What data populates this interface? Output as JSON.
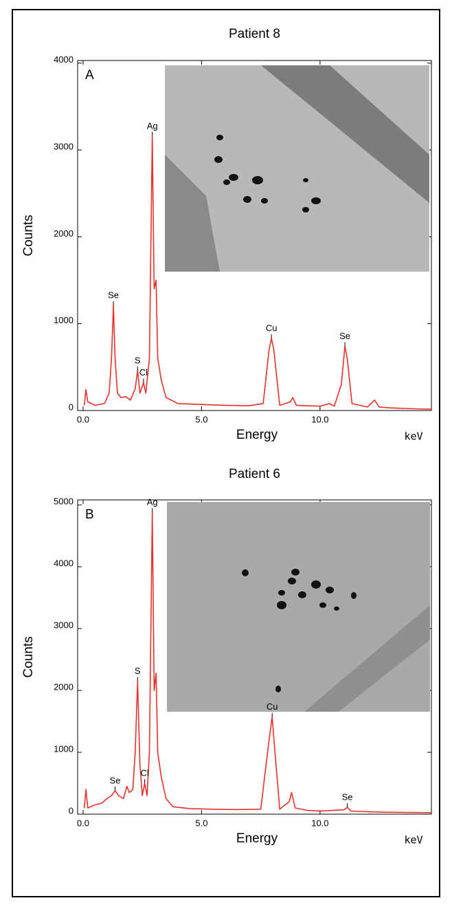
{
  "chart_data": [
    {
      "type": "line",
      "title": "Patient 8",
      "panel_label": "A",
      "y_label": "Counts",
      "x_label": "Energy",
      "x_unit": "keV",
      "xlim": [
        -0.23,
        14.7
      ],
      "ylim": [
        0,
        4030
      ],
      "xticks": [
        {
          "value": 0,
          "label": "0.0"
        },
        {
          "value": 5,
          "label": "5.0"
        },
        {
          "value": 10,
          "label": "10.0"
        }
      ],
      "yticks": [
        0,
        1000,
        2000,
        3000,
        4000
      ],
      "series": [
        {
          "color": "#e8302a",
          "x": [
            0.05,
            0.12,
            0.2,
            0.5,
            0.9,
            1.1,
            1.2,
            1.28,
            1.35,
            1.45,
            1.6,
            1.8,
            2.0,
            2.2,
            2.3,
            2.4,
            2.55,
            2.65,
            2.8,
            2.92,
            3.0,
            3.08,
            3.15,
            3.3,
            3.5,
            4.0,
            5.0,
            6.0,
            7.0,
            7.6,
            7.85,
            7.95,
            8.05,
            8.3,
            8.75,
            8.85,
            9.0,
            10.0,
            10.4,
            10.6,
            10.9,
            11.05,
            11.15,
            11.35,
            12.0,
            12.3,
            12.5,
            13.0,
            14.0,
            14.7
          ],
          "values": [
            60,
            240,
            100,
            60,
            80,
            200,
            600,
            1210,
            600,
            200,
            150,
            160,
            120,
            250,
            460,
            200,
            320,
            200,
            600,
            3160,
            1400,
            1500,
            600,
            350,
            150,
            80,
            70,
            60,
            55,
            80,
            700,
            830,
            700,
            60,
            100,
            150,
            60,
            50,
            80,
            50,
            300,
            740,
            600,
            80,
            40,
            120,
            40,
            30,
            20,
            15
          ]
        }
      ],
      "annotations": [
        {
          "text": "Se",
          "x": 1.28,
          "y": 1210
        },
        {
          "text": "S",
          "x": 2.3,
          "y": 460
        },
        {
          "text": "Cl",
          "x": 2.55,
          "y": 320
        },
        {
          "text": "Ag",
          "x": 2.92,
          "y": 3160
        },
        {
          "text": "Cu",
          "x": 7.95,
          "y": 830
        },
        {
          "text": "Se",
          "x": 11.05,
          "y": 740
        }
      ]
    },
    {
      "type": "line",
      "title": "Patient 6",
      "panel_label": "B",
      "y_label": "Counts",
      "x_label": "Energy",
      "x_unit": "keV",
      "xlim": [
        -0.23,
        14.7
      ],
      "ylim": [
        0,
        5080
      ],
      "xticks": [
        {
          "value": 0,
          "label": "0.0"
        },
        {
          "value": 5,
          "label": "5.0"
        },
        {
          "value": 10,
          "label": "10.0"
        }
      ],
      "yticks": [
        0,
        1000,
        2000,
        3000,
        4000,
        5000
      ],
      "series": [
        {
          "color": "#e8302a",
          "x": [
            0.05,
            0.12,
            0.2,
            0.5,
            0.8,
            1.0,
            1.2,
            1.35,
            1.5,
            1.7,
            1.85,
            1.95,
            2.1,
            2.2,
            2.3,
            2.4,
            2.5,
            2.6,
            2.7,
            2.8,
            2.92,
            3.0,
            3.08,
            3.15,
            3.3,
            3.5,
            3.8,
            4.5,
            5.5,
            6.5,
            7.5,
            7.85,
            7.98,
            8.1,
            8.3,
            8.7,
            8.8,
            8.95,
            9.5,
            10.0,
            10.5,
            11.0,
            11.15,
            11.3,
            12.0,
            13.0,
            14.7
          ],
          "values": [
            100,
            400,
            100,
            150,
            180,
            250,
            300,
            380,
            300,
            250,
            450,
            350,
            400,
            1000,
            2150,
            800,
            300,
            500,
            300,
            1000,
            4880,
            2000,
            2280,
            1000,
            600,
            250,
            120,
            90,
            80,
            75,
            80,
            1200,
            1570,
            1000,
            80,
            200,
            350,
            100,
            60,
            50,
            60,
            70,
            110,
            50,
            40,
            30,
            25
          ]
        }
      ],
      "annotations": [
        {
          "text": "Se",
          "x": 1.35,
          "y": 380
        },
        {
          "text": "S",
          "x": 2.3,
          "y": 2150
        },
        {
          "text": "Cl",
          "x": 2.6,
          "y": 500
        },
        {
          "text": "Ag",
          "x": 2.92,
          "y": 4880
        },
        {
          "text": "Cu",
          "x": 7.98,
          "y": 1570
        },
        {
          "text": "Se",
          "x": 11.15,
          "y": 110
        }
      ]
    }
  ]
}
